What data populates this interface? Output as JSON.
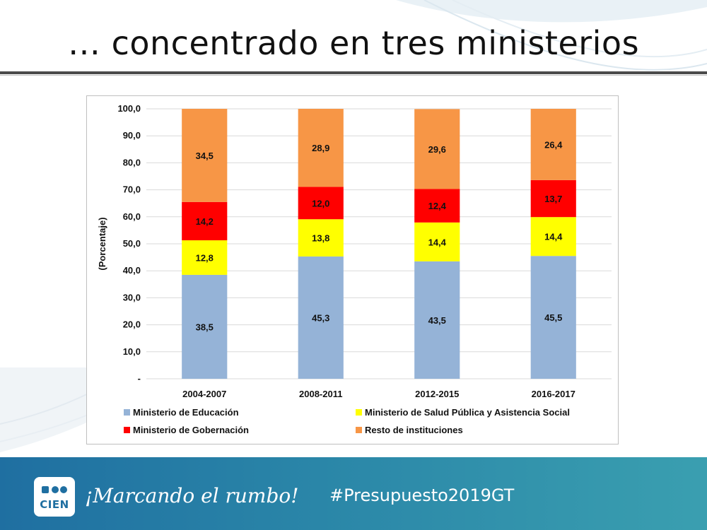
{
  "slide": {
    "title": "… concentrado en tres ministerios"
  },
  "footer": {
    "logo_text": "CIEN",
    "slogan": "¡Marcando el rumbo!",
    "hashtag": "#Presupuesto2019GT"
  },
  "chart_data": {
    "type": "bar",
    "stacked": true,
    "categories": [
      "2004-2007",
      "2008-2011",
      "2012-2015",
      "2016-2017"
    ],
    "series": [
      {
        "name": "Ministerio de Educación",
        "color": "#95b3d7",
        "values": [
          38.5,
          45.3,
          43.5,
          45.5
        ],
        "labels": [
          "38,5",
          "45,3",
          "43,5",
          "45,5"
        ]
      },
      {
        "name": "Ministerio de Salud Pública y Asistencia Social",
        "color": "#ffff00",
        "values": [
          12.8,
          13.8,
          14.4,
          14.4
        ],
        "labels": [
          "12,8",
          "13,8",
          "14,4",
          "14,4"
        ]
      },
      {
        "name": "Ministerio de Gobernación",
        "color": "#ff0000",
        "values": [
          14.2,
          12.0,
          12.4,
          13.7
        ],
        "labels": [
          "14,2",
          "12,0",
          "12,4",
          "13,7"
        ]
      },
      {
        "name": "Resto de instituciones",
        "color": "#f79646",
        "values": [
          34.5,
          28.9,
          29.6,
          26.4
        ],
        "labels": [
          "34,5",
          "28,9",
          "29,6",
          "26,4"
        ]
      }
    ],
    "ylabel": "(Porcentaje)",
    "xlabel": "",
    "ylim": [
      0,
      100
    ],
    "yticks": [
      0,
      10,
      20,
      30,
      40,
      50,
      60,
      70,
      80,
      90,
      100
    ],
    "ytick_labels": [
      "-",
      "10,0",
      "20,0",
      "30,0",
      "40,0",
      "50,0",
      "60,0",
      "70,0",
      "80,0",
      "90,0",
      "100,0"
    ],
    "grid": true,
    "legend_position": "bottom"
  }
}
